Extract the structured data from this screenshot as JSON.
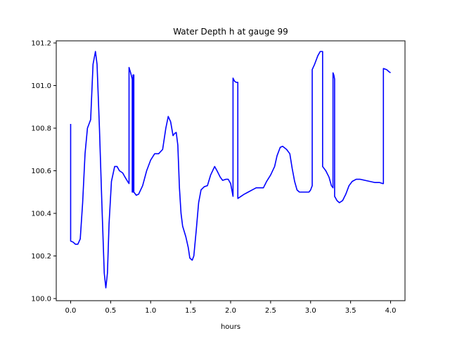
{
  "chart_data": {
    "type": "line",
    "title": "Water Depth h at gauge 99",
    "xlabel": "hours",
    "ylabel": "",
    "xlim": [
      -0.18,
      4.18
    ],
    "ylim": [
      99.99,
      101.21
    ],
    "xticks": [
      0.0,
      0.5,
      1.0,
      1.5,
      2.0,
      2.5,
      3.0,
      3.5,
      4.0
    ],
    "xtick_labels": [
      "0.0",
      "0.5",
      "1.0",
      "1.5",
      "2.0",
      "2.5",
      "3.0",
      "3.5",
      "4.0"
    ],
    "yticks": [
      100.0,
      100.2,
      100.4,
      100.6,
      100.8,
      101.0,
      101.2
    ],
    "ytick_labels": [
      "100.0",
      "100.2",
      "100.4",
      "100.6",
      "100.8",
      "101.0",
      "101.2"
    ],
    "grid": false,
    "series": [
      {
        "color": "#0000ff",
        "points": [
          [
            0.0,
            100.82
          ],
          [
            0.0,
            100.27
          ],
          [
            0.03,
            100.265
          ],
          [
            0.06,
            100.255
          ],
          [
            0.09,
            100.255
          ],
          [
            0.12,
            100.28
          ],
          [
            0.15,
            100.45
          ],
          [
            0.18,
            100.68
          ],
          [
            0.21,
            100.8
          ],
          [
            0.25,
            100.84
          ],
          [
            0.28,
            101.1
          ],
          [
            0.31,
            101.16
          ],
          [
            0.33,
            101.1
          ],
          [
            0.36,
            100.8
          ],
          [
            0.39,
            100.45
          ],
          [
            0.42,
            100.12
          ],
          [
            0.44,
            100.05
          ],
          [
            0.46,
            100.12
          ],
          [
            0.48,
            100.35
          ],
          [
            0.51,
            100.55
          ],
          [
            0.55,
            100.62
          ],
          [
            0.58,
            100.62
          ],
          [
            0.61,
            100.6
          ],
          [
            0.65,
            100.59
          ],
          [
            0.68,
            100.57
          ],
          [
            0.72,
            100.545
          ],
          [
            0.73,
            100.54
          ],
          [
            0.73,
            101.085
          ],
          [
            0.75,
            101.06
          ],
          [
            0.77,
            101.03
          ],
          [
            0.77,
            100.5
          ],
          [
            0.78,
            100.5
          ],
          [
            0.78,
            101.05
          ],
          [
            0.79,
            101.05
          ],
          [
            0.79,
            100.5
          ],
          [
            0.82,
            100.485
          ],
          [
            0.85,
            100.49
          ],
          [
            0.9,
            100.53
          ],
          [
            0.95,
            100.6
          ],
          [
            1.0,
            100.65
          ],
          [
            1.05,
            100.68
          ],
          [
            1.1,
            100.68
          ],
          [
            1.15,
            100.7
          ],
          [
            1.19,
            100.8
          ],
          [
            1.22,
            100.855
          ],
          [
            1.25,
            100.83
          ],
          [
            1.28,
            100.765
          ],
          [
            1.3,
            100.775
          ],
          [
            1.32,
            100.78
          ],
          [
            1.34,
            100.72
          ],
          [
            1.36,
            100.52
          ],
          [
            1.38,
            100.4
          ],
          [
            1.4,
            100.34
          ],
          [
            1.44,
            100.29
          ],
          [
            1.47,
            100.24
          ],
          [
            1.49,
            100.19
          ],
          [
            1.52,
            100.18
          ],
          [
            1.54,
            100.2
          ],
          [
            1.57,
            100.32
          ],
          [
            1.6,
            100.45
          ],
          [
            1.63,
            100.51
          ],
          [
            1.67,
            100.525
          ],
          [
            1.71,
            100.53
          ],
          [
            1.75,
            100.58
          ],
          [
            1.8,
            100.62
          ],
          [
            1.83,
            100.6
          ],
          [
            1.87,
            100.57
          ],
          [
            1.9,
            100.555
          ],
          [
            1.94,
            100.56
          ],
          [
            1.97,
            100.56
          ],
          [
            2.0,
            100.54
          ],
          [
            2.02,
            100.5
          ],
          [
            2.03,
            100.48
          ],
          [
            2.03,
            101.035
          ],
          [
            2.05,
            101.02
          ],
          [
            2.07,
            101.015
          ],
          [
            2.09,
            101.015
          ],
          [
            2.09,
            100.47
          ],
          [
            2.13,
            100.48
          ],
          [
            2.17,
            100.49
          ],
          [
            2.22,
            100.5
          ],
          [
            2.27,
            100.51
          ],
          [
            2.32,
            100.52
          ],
          [
            2.37,
            100.52
          ],
          [
            2.41,
            100.52
          ],
          [
            2.45,
            100.55
          ],
          [
            2.5,
            100.58
          ],
          [
            2.55,
            100.62
          ],
          [
            2.58,
            100.67
          ],
          [
            2.62,
            100.71
          ],
          [
            2.65,
            100.715
          ],
          [
            2.7,
            100.7
          ],
          [
            2.74,
            100.68
          ],
          [
            2.77,
            100.61
          ],
          [
            2.8,
            100.55
          ],
          [
            2.83,
            100.51
          ],
          [
            2.86,
            100.5
          ],
          [
            2.9,
            100.5
          ],
          [
            2.95,
            100.5
          ],
          [
            2.98,
            100.5
          ],
          [
            3.0,
            100.51
          ],
          [
            3.02,
            100.53
          ],
          [
            3.02,
            101.075
          ],
          [
            3.05,
            101.1
          ],
          [
            3.09,
            101.14
          ],
          [
            3.12,
            101.16
          ],
          [
            3.15,
            101.16
          ],
          [
            3.15,
            100.62
          ],
          [
            3.19,
            100.6
          ],
          [
            3.23,
            100.57
          ],
          [
            3.26,
            100.53
          ],
          [
            3.28,
            100.52
          ],
          [
            3.28,
            101.06
          ],
          [
            3.29,
            101.05
          ],
          [
            3.3,
            101.03
          ],
          [
            3.3,
            100.48
          ],
          [
            3.33,
            100.46
          ],
          [
            3.36,
            100.45
          ],
          [
            3.4,
            100.46
          ],
          [
            3.44,
            100.49
          ],
          [
            3.48,
            100.53
          ],
          [
            3.52,
            100.55
          ],
          [
            3.57,
            100.56
          ],
          [
            3.62,
            100.56
          ],
          [
            3.68,
            100.555
          ],
          [
            3.74,
            100.55
          ],
          [
            3.8,
            100.545
          ],
          [
            3.86,
            100.545
          ],
          [
            3.9,
            100.54
          ],
          [
            3.91,
            100.54
          ],
          [
            3.91,
            101.08
          ],
          [
            3.95,
            101.075
          ],
          [
            3.98,
            101.065
          ],
          [
            4.0,
            101.06
          ]
        ]
      }
    ]
  }
}
